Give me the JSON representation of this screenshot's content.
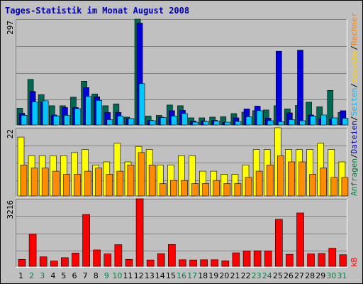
{
  "title": "Tages-Statistik im Monat August 2008",
  "legend": {
    "top": [
      {
        "text": "Anfragen",
        "color": "#008040"
      },
      {
        "text": "/",
        "color": "#000000"
      },
      {
        "text": "Dateien",
        "color": "#0000c0"
      },
      {
        "text": "/",
        "color": "#000000"
      },
      {
        "text": "Seiten",
        "color": "#00c0ff"
      },
      {
        "text": "/",
        "color": "#000000"
      },
      {
        "text": "Besuche",
        "color": "#ffd000"
      },
      {
        "text": "/",
        "color": "#000000"
      },
      {
        "text": "Rechner",
        "color": "#ff8000"
      }
    ],
    "bottom": [
      {
        "text": "kB",
        "color": "#ff0000"
      }
    ]
  },
  "chart_data": [
    {
      "type": "bar",
      "title": "Tages-Statistik im Monat August 2008",
      "categories": [
        "1",
        "2",
        "3",
        "4",
        "5",
        "6",
        "7",
        "8",
        "9",
        "10",
        "11",
        "12",
        "13",
        "14",
        "15",
        "16",
        "17",
        "18",
        "19",
        "20",
        "21",
        "22",
        "23",
        "24",
        "25",
        "26",
        "27",
        "28",
        "29",
        "30",
        "31"
      ],
      "weekend_days": [
        "2",
        "3",
        "9",
        "10",
        "16",
        "17",
        "23",
        "24",
        "30",
        "31"
      ],
      "ymax_label": "297",
      "ylim": [
        0,
        297
      ],
      "series": [
        {
          "name": "Anfragen",
          "color": "#006850",
          "values": [
            47,
            128,
            85,
            54,
            54,
            78,
            123,
            87,
            54,
            59,
            22,
            297,
            25,
            27,
            56,
            54,
            20,
            20,
            22,
            23,
            32,
            36,
            40,
            42,
            54,
            45,
            55,
            64,
            51,
            97,
            35
          ]
        },
        {
          "name": "Dateien",
          "color": "#0000d8",
          "values": [
            33,
            94,
            65,
            28,
            49,
            49,
            105,
            79,
            35,
            35,
            18,
            286,
            13,
            22,
            40,
            41,
            11,
            11,
            13,
            7,
            20,
            45,
            53,
            19,
            207,
            34,
            210,
            28,
            17,
            17,
            40
          ]
        },
        {
          "name": "Seiten",
          "color": "#00c8ff",
          "values": [
            27,
            65,
            68,
            25,
            27,
            46,
            80,
            69,
            15,
            25,
            18,
            116,
            12,
            21,
            25,
            32,
            8,
            10,
            11,
            8,
            10,
            23,
            40,
            12,
            9,
            15,
            12,
            25,
            28,
            20,
            19
          ]
        }
      ]
    },
    {
      "type": "bar",
      "ymax_label": "22",
      "ylim": [
        0,
        22
      ],
      "series": [
        {
          "name": "Besuche",
          "color": "#ffff00",
          "values": [
            19,
            13,
            13,
            13,
            13,
            14,
            15,
            10,
            11,
            17,
            11,
            16,
            15,
            10,
            10,
            13,
            13,
            8,
            8,
            7,
            7,
            10,
            15,
            15,
            22,
            15,
            15,
            15,
            17,
            15,
            11
          ]
        },
        {
          "name": "Rechner",
          "color": "#ff8c00",
          "values": [
            10,
            9,
            9,
            8,
            7,
            7,
            8,
            9,
            7,
            8,
            10,
            14,
            10,
            4,
            5,
            5,
            4,
            4,
            5,
            4,
            4,
            6,
            8,
            10,
            13,
            11,
            11,
            7,
            9,
            6,
            6
          ]
        }
      ]
    },
    {
      "type": "bar",
      "ymax_label": "3216",
      "ylim": [
        0,
        3216
      ],
      "series": [
        {
          "name": "kB",
          "color": "#ff0000",
          "values": [
            330,
            1530,
            450,
            250,
            410,
            630,
            2470,
            780,
            590,
            1030,
            330,
            3216,
            300,
            600,
            1040,
            310,
            300,
            310,
            310,
            260,
            640,
            730,
            740,
            730,
            2240,
            570,
            2540,
            590,
            610,
            860,
            550
          ]
        }
      ]
    }
  ]
}
